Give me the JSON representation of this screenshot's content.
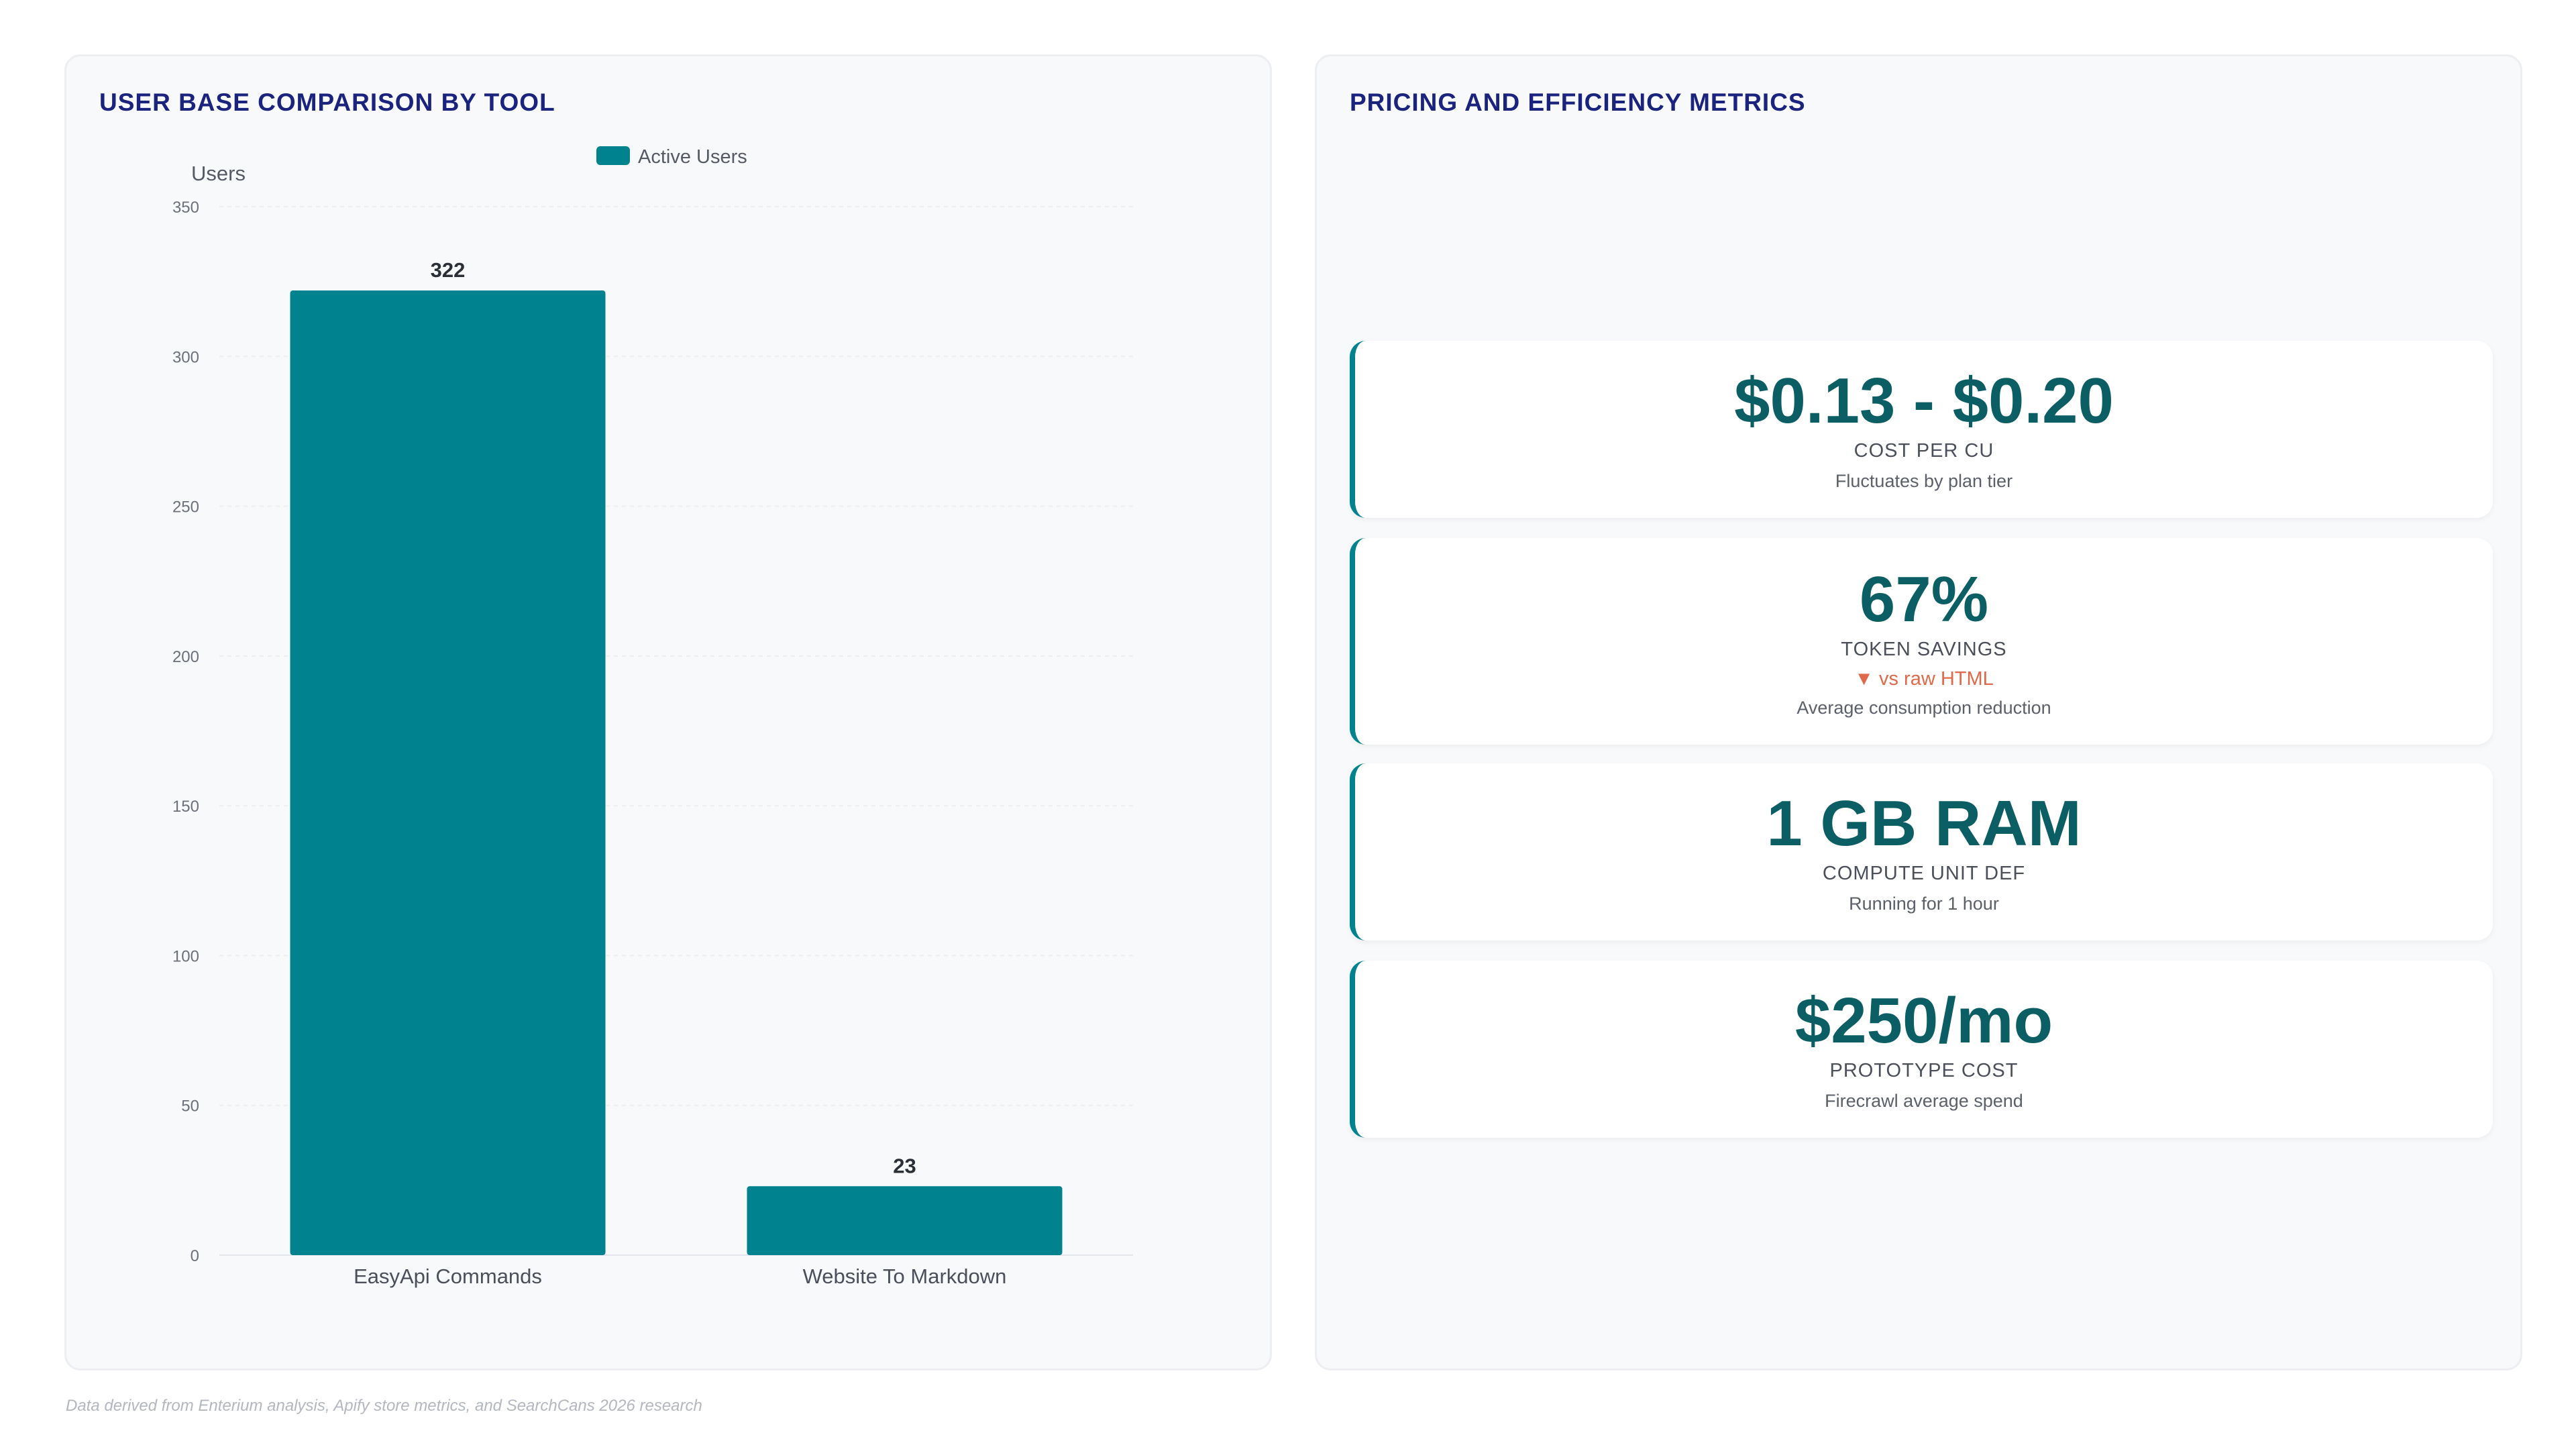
{
  "left_panel": {
    "title": "USER BASE COMPARISON BY TOOL"
  },
  "right_panel": {
    "title": "PRICING AND EFFICIENCY METRICS",
    "cards": [
      {
        "value": "$0.13 - $0.20",
        "label": "COST PER CU",
        "delta": "",
        "note": "Fluctuates by plan tier"
      },
      {
        "value": "67%",
        "label": "TOKEN SAVINGS",
        "delta": "▼ vs raw HTML",
        "note": "Average consumption reduction"
      },
      {
        "value": "1 GB RAM",
        "label": "COMPUTE UNIT DEF",
        "delta": "",
        "note": "Running for 1 hour"
      },
      {
        "value": "$250/mo",
        "label": "PROTOTYPE COST",
        "delta": "",
        "note": "Firecrawl average spend"
      }
    ]
  },
  "colors": {
    "accent": "#00838f",
    "title": "#1a237e",
    "value": "#0b5e63",
    "delta": "#e0694a"
  },
  "footnote": "Data derived from Enterium analysis, Apify store metrics, and SearchCans 2026 research",
  "chart_data": {
    "type": "bar",
    "title": "USER BASE COMPARISON BY TOOL",
    "categories": [
      "EasyApi Commands",
      "Website To Markdown"
    ],
    "series": [
      {
        "name": "Active Users",
        "values": [
          322,
          23
        ],
        "color": "#00838f"
      }
    ],
    "ylabel": "Users",
    "xlabel": "",
    "ylim": [
      0,
      350
    ],
    "yticks": [
      0,
      50,
      100,
      150,
      200,
      250,
      300,
      350
    ],
    "grid": true,
    "legend": "top-center",
    "data_labels": true
  }
}
